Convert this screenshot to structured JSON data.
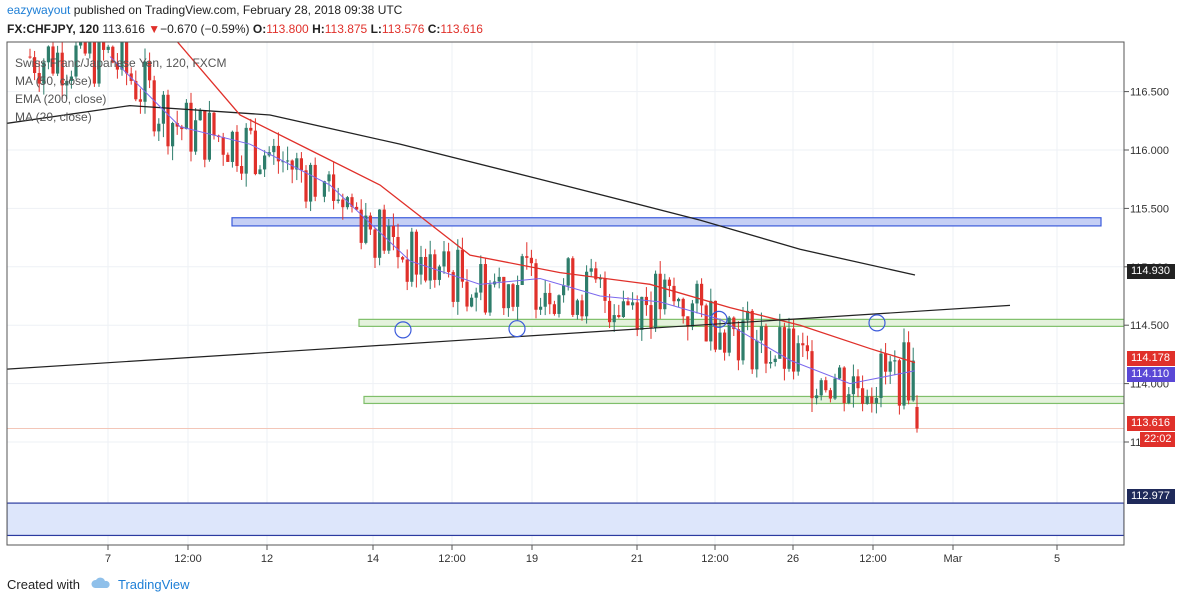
{
  "header": {
    "user": "eazywayout",
    "published_text": " published on TradingView.com, February 28, 2018 09:38 UTC",
    "symbol": "FX:CHFJPY, 120",
    "last": "113.616",
    "change": "−0.670 (−0.59%)",
    "o_label": "O:",
    "o": "113.800",
    "h_label": "H:",
    "h": "113.875",
    "l_label": "L:",
    "l": "113.576",
    "c_label": "C:",
    "c": "113.616"
  },
  "legend": {
    "title": "Swiss Franc/Japanese Yen, 120, FXCM",
    "ma50": "MA (50, close)",
    "ema200": "EMA (200, close)",
    "ma20": "MA (20, close)"
  },
  "price_tags": {
    "ema200": "114.930",
    "ma50": "114.178",
    "ma20": "114.110",
    "last": "113.616",
    "timer": "22:02",
    "zone": "112.977"
  },
  "footer": {
    "created_with": "Created with",
    "brand": "TradingView"
  },
  "colors": {
    "ma50": "#e0302a",
    "ma20": "#7b68ee",
    "ema200": "#222222",
    "up": "#2e7d6b",
    "down": "#e0302a",
    "resistance_box": "#3b5bdb",
    "support_box": "#7fbf6a",
    "brand": "#1e7fd6"
  },
  "chart_data": {
    "type": "candlestick",
    "symbol": "FX:CHFJPY",
    "y_axis": {
      "ticks": [
        "116.500",
        "116.000",
        "115.500",
        "115.000",
        "114.500",
        "114.000",
        "113.500"
      ],
      "ylim": [
        112.3,
        117.0
      ]
    },
    "x_axis": {
      "ticks": [
        "7",
        "12:00",
        "12",
        "14",
        "12:00",
        "19",
        "21",
        "12:00",
        "26",
        "12:00",
        "Mar",
        "5"
      ]
    },
    "series": [
      {
        "name": "EMA (200, close)",
        "x": [
          0,
          130,
          270,
          400,
          540,
          700,
          800,
          915
        ],
        "values": [
          116.22,
          116.38,
          116.3,
          116.05,
          115.75,
          115.4,
          115.15,
          114.93
        ]
      },
      {
        "name": "MA (50, close)",
        "x": [
          170,
          240,
          310,
          380,
          470,
          560,
          650,
          730,
          800,
          870,
          915
        ],
        "values": [
          117.0,
          116.3,
          116.0,
          115.7,
          115.1,
          114.95,
          114.85,
          114.65,
          114.5,
          114.3,
          114.18
        ]
      },
      {
        "name": "MA (20, close)",
        "x": [
          110,
          180,
          250,
          330,
          410,
          480,
          540,
          600,
          660,
          720,
          790,
          850,
          915
        ],
        "values": [
          116.8,
          116.2,
          116.05,
          115.7,
          115.05,
          114.85,
          114.9,
          114.75,
          114.7,
          114.55,
          114.2,
          114.0,
          114.11
        ]
      }
    ],
    "zones": [
      {
        "kind": "resistance",
        "y1": 115.35,
        "y2": 115.42
      },
      {
        "kind": "support",
        "y1": 114.49,
        "y2": 114.55
      },
      {
        "kind": "support",
        "y1": 113.83,
        "y2": 113.89
      },
      {
        "kind": "zone",
        "y1": 112.7,
        "y2": 112.977
      }
    ],
    "trendline": {
      "from": [
        0,
        114.12
      ],
      "to": [
        1010,
        114.67
      ]
    },
    "last_price": 113.616
  }
}
